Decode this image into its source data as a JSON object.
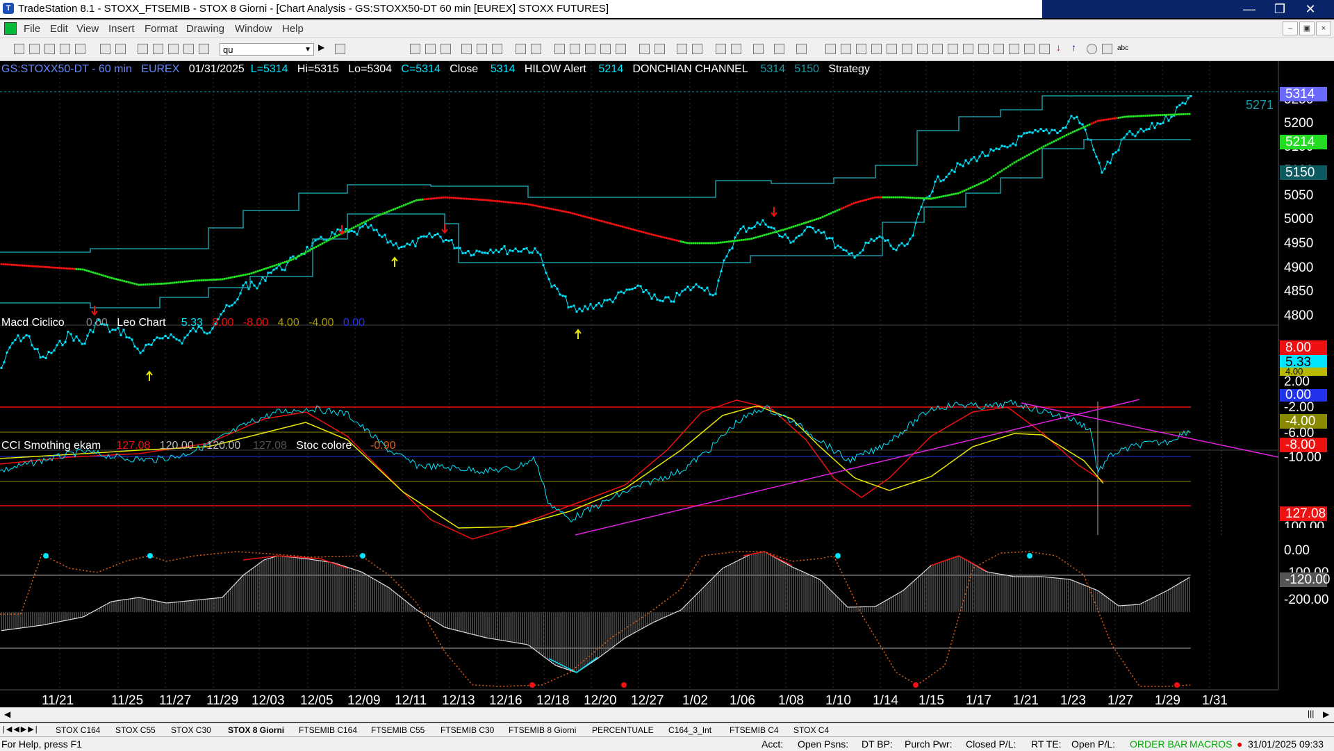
{
  "window": {
    "title": "TradeStation 8.1 - STOXX_FTSEMIB - STOX  8 Giorni - [Chart Analysis - GS:STOXX50-DT  60 min  [EUREX] STOXX FUTURES]",
    "minimize": "—",
    "restore": "❐",
    "close": "✕"
  },
  "menu": [
    "File",
    "Edit",
    "View",
    "Insert",
    "Format",
    "Drawing",
    "Window",
    "Help"
  ],
  "toolbar": {
    "symbol_value": "qu"
  },
  "chart_header": {
    "symbol": "GS:STOXX50-DT - 60 min",
    "exchange": "EUREX",
    "date": "01/31/2025",
    "last": "L=5314",
    "high": "Hi=5315",
    "low": "Lo=5304",
    "close": "C=5314",
    "close_lbl": "Close",
    "close_val": "5314",
    "alert_lbl": "HILOW Alert",
    "alert_val": "5214",
    "donchian_lbl": "DONCHIAN CHANNEL",
    "don_hi": "5314",
    "don_lo": "5150",
    "strategy": "Strategy"
  },
  "macd_header": {
    "name": "Macd Ciclico",
    "v0": "0.00",
    "leo": "Leo Chart",
    "v1": "5.33",
    "v2": "8.00",
    "v3": "-8.00",
    "v4": "4.00",
    "v5": "-4.00",
    "v6": "0.00"
  },
  "cci_header": {
    "name": "CCI Smothing ekam",
    "v1": "127.08",
    "v2": "120.00",
    "v3": "-120.00",
    "v4": "127.08",
    "stoc": "Stoc colore",
    "v5": "-0.90"
  },
  "price_axis": [
    "5250",
    "5200",
    "5150",
    "5100",
    "5050",
    "5000",
    "4950",
    "4900",
    "4850",
    "4800",
    "4750"
  ],
  "price_labels": {
    "last": "5314",
    "dashed": "5271",
    "alert": "5214",
    "don_lo": "5150"
  },
  "macd_axis": [
    "2.00",
    "-2.00",
    "-6.00",
    "-10.00"
  ],
  "macd_labels": {
    "l8": "8.00",
    "l533": "5.33",
    "l4": "4.00",
    "l0": "0.00",
    "lm4": "-4.00",
    "lm8": "-8.00"
  },
  "cci_axis": [
    "100.00",
    "0.00",
    "-100.00",
    "-200.00"
  ],
  "cci_labels": {
    "l127": "127.08",
    "lm120": "-120.00"
  },
  "dates": [
    "11/21",
    "11/25",
    "11/27",
    "11/29",
    "12/03",
    "12/05",
    "12/09",
    "12/11",
    "12/13",
    "12/16",
    "12/18",
    "12/20",
    "12/27",
    "1/02",
    "1/06",
    "1/08",
    "1/10",
    "1/14",
    "1/15",
    "1/17",
    "1/21",
    "1/23",
    "1/27",
    "1/29",
    "1/31"
  ],
  "tabs": [
    "STOX C164",
    "STOX C55",
    "STOX  C30",
    "STOX  8 Giorni",
    "FTSEMIB C164",
    "FTSEMIB C55",
    "FTSEMIB C30",
    "FTSEMIB  8 Giorni",
    "PERCENTUALE",
    "C164_3_Int",
    "FTSEMIB C4",
    "STOX  C4"
  ],
  "status": {
    "help": "For Help, press F1",
    "acct": "Acct:",
    "open_psns": "Open Psns:",
    "dtbp": "DT BP:",
    "purch": "Purch Pwr:",
    "closed_pl": "Closed P/L:",
    "rtte": "RT TE:",
    "open_pl": "Open P/L:",
    "orderbar": "ORDER BAR",
    "macros": "MACROS",
    "datetime": "31/01/2025 09:33"
  },
  "colors": {
    "price_line": "#00e5ff",
    "ma_up": "#22dd22",
    "ma_down": "#ee1111",
    "channel": "#1a9aa8",
    "magenta": "#e020e0",
    "yellow": "#e8e800"
  }
}
